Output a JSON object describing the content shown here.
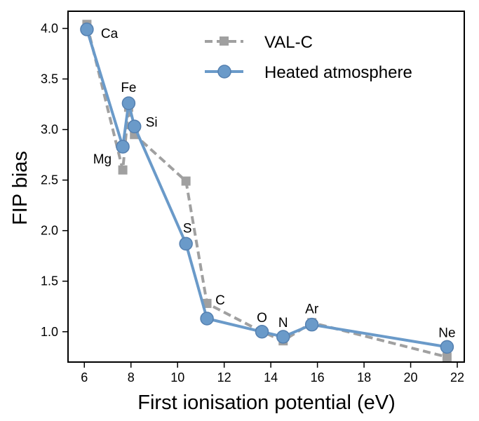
{
  "chart_data": {
    "type": "line",
    "title": "",
    "xlabel": "First ionisation potential (eV)",
    "ylabel": "FIP bias",
    "xlim": [
      5.3,
      22.3
    ],
    "ylim": [
      0.7,
      4.17
    ],
    "x_ticks": [
      6,
      8,
      10,
      12,
      14,
      16,
      18,
      20,
      22
    ],
    "y_ticks": [
      1.0,
      1.5,
      2.0,
      2.5,
      3.0,
      3.5,
      4.0
    ],
    "x_tick_labels": [
      "6",
      "8",
      "10",
      "12",
      "14",
      "16",
      "18",
      "20",
      "22"
    ],
    "y_tick_labels": [
      "1.0",
      "1.5",
      "2.0",
      "2.5",
      "3.0",
      "3.5",
      "4.0"
    ],
    "grid": false,
    "legend_position": "top-right",
    "elements": [
      "Ca",
      "Mg",
      "Fe",
      "Si",
      "S",
      "C",
      "O",
      "N",
      "Ar",
      "Ne"
    ],
    "x": [
      6.11,
      7.65,
      7.9,
      8.15,
      10.36,
      11.26,
      13.62,
      14.53,
      15.76,
      21.56
    ],
    "series": [
      {
        "name": "VAL-C",
        "color": "#a0a0a0",
        "style": "dashed",
        "marker": "square",
        "values": [
          4.04,
          2.6,
          3.22,
          2.95,
          2.49,
          1.28,
          1.0,
          0.91,
          1.09,
          0.75
        ]
      },
      {
        "name": "Heated atmosphere",
        "color": "#6a9ac9",
        "style": "solid",
        "marker": "circle",
        "values": [
          3.99,
          2.83,
          3.26,
          3.03,
          1.87,
          1.13,
          1.0,
          0.95,
          1.07,
          0.85
        ]
      }
    ]
  }
}
